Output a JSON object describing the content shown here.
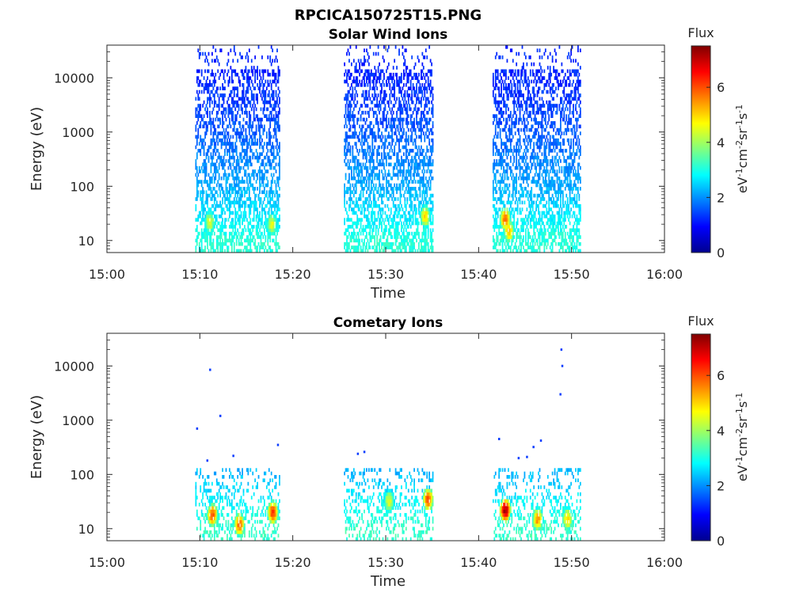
{
  "figure": {
    "title": "RPCICA150725T15.PNG"
  },
  "chart_data": [
    {
      "type": "heatmap",
      "title": "Solar Wind Ions",
      "xlabel": "Time",
      "ylabel": "Energy (eV)",
      "x_ticks": [
        "15:00",
        "15:10",
        "15:20",
        "15:30",
        "15:40",
        "15:50",
        "16:00"
      ],
      "x_range_minutes": [
        0,
        60
      ],
      "y_scale": "log",
      "y_ticks": [
        "10",
        "100",
        "1000",
        "10000"
      ],
      "y_tick_values": [
        10,
        100,
        1000,
        10000
      ],
      "y_range": [
        6,
        40000
      ],
      "colorbar": {
        "label": "Flux",
        "units": "eV-1cm-2sr-1s-1",
        "range": [
          0,
          7.5
        ],
        "ticks": [
          "0",
          "2",
          "4",
          "6"
        ],
        "colormap": "jet"
      },
      "grid": false,
      "data_intervals_minutes": [
        [
          9.5,
          18.6
        ],
        [
          25.5,
          35.1
        ],
        [
          41.5,
          51.0
        ]
      ],
      "hotspots": [
        {
          "t": 11.0,
          "E": 22,
          "flux": 4.5
        },
        {
          "t": 17.7,
          "E": 20,
          "flux": 4.5
        },
        {
          "t": 34.2,
          "E": 28,
          "flux": 5.0
        },
        {
          "t": 42.8,
          "E": 25,
          "flux": 5.8
        },
        {
          "t": 43.2,
          "E": 15,
          "flux": 5.2
        }
      ],
      "flux_profile": [
        {
          "E": 10000,
          "flux": 1.2
        },
        {
          "E": 1000,
          "flux": 1.6
        },
        {
          "E": 100,
          "flux": 2.2
        },
        {
          "E": 10,
          "flux": 3.1
        }
      ]
    },
    {
      "type": "heatmap",
      "title": "Cometary Ions",
      "xlabel": "Time",
      "ylabel": "Energy (eV)",
      "x_ticks": [
        "15:00",
        "15:10",
        "15:20",
        "15:30",
        "15:40",
        "15:50",
        "16:00"
      ],
      "x_range_minutes": [
        0,
        60
      ],
      "y_scale": "log",
      "y_ticks": [
        "10",
        "100",
        "1000",
        "10000"
      ],
      "y_tick_values": [
        10,
        100,
        1000,
        10000
      ],
      "y_range": [
        6,
        40000
      ],
      "colorbar": {
        "label": "Flux",
        "units": "eV-1cm-2sr-1s-1",
        "range": [
          0,
          7.5
        ],
        "ticks": [
          "0",
          "2",
          "4",
          "6"
        ],
        "colormap": "jet"
      },
      "grid": false,
      "data_intervals_minutes": [
        [
          9.5,
          18.6
        ],
        [
          25.5,
          35.1
        ],
        [
          41.5,
          51.0
        ]
      ],
      "hotspots": [
        {
          "t": 11.3,
          "E": 18,
          "flux": 6.0
        },
        {
          "t": 14.2,
          "E": 12,
          "flux": 5.8
        },
        {
          "t": 17.8,
          "E": 20,
          "flux": 6.2
        },
        {
          "t": 30.3,
          "E": 32,
          "flux": 4.5
        },
        {
          "t": 34.5,
          "E": 35,
          "flux": 6.0
        },
        {
          "t": 42.8,
          "E": 22,
          "flux": 7.2
        },
        {
          "t": 46.3,
          "E": 15,
          "flux": 5.5
        },
        {
          "t": 49.5,
          "E": 15,
          "flux": 5.0
        }
      ],
      "isolated_points": [
        {
          "t": 9.6,
          "E": 700
        },
        {
          "t": 11.0,
          "E": 8500
        },
        {
          "t": 12.1,
          "E": 1200
        },
        {
          "t": 10.7,
          "E": 180
        },
        {
          "t": 13.5,
          "E": 220
        },
        {
          "t": 18.3,
          "E": 350
        },
        {
          "t": 26.9,
          "E": 240
        },
        {
          "t": 27.6,
          "E": 260
        },
        {
          "t": 42.1,
          "E": 450
        },
        {
          "t": 44.2,
          "E": 200
        },
        {
          "t": 45.1,
          "E": 210
        },
        {
          "t": 45.8,
          "E": 320
        },
        {
          "t": 46.6,
          "E": 420
        },
        {
          "t": 48.8,
          "E": 20000
        },
        {
          "t": 48.9,
          "E": 10000
        },
        {
          "t": 48.7,
          "E": 3000
        }
      ],
      "flux_profile": [
        {
          "E": 100,
          "flux": 2.3
        },
        {
          "E": 30,
          "flux": 2.8
        },
        {
          "E": 10,
          "flux": 3.2
        }
      ]
    }
  ]
}
